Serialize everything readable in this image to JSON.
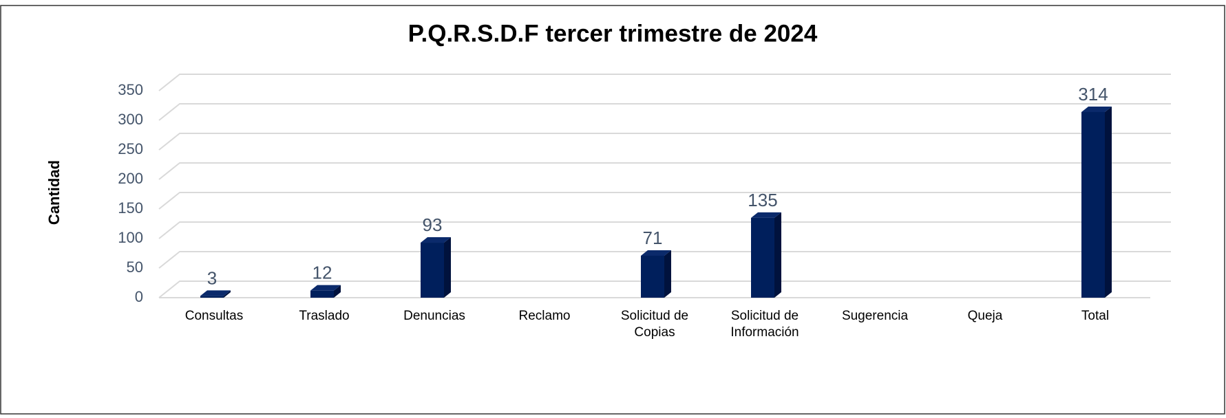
{
  "chart_data": {
    "type": "bar3d",
    "title": "P.Q.R.S.D.F tercer trimestre de 2024",
    "y_label": "Cantidad",
    "categories": [
      "Consultas",
      "Traslado",
      "Denuncias",
      "Reclamo",
      "Solicitud de Copias",
      "Solicitud de Información",
      "Sugerencia",
      "Queja",
      "Total"
    ],
    "values": [
      3,
      12,
      93,
      null,
      71,
      135,
      null,
      null,
      314
    ],
    "color": "#001f5c",
    "ylim": [
      0,
      350
    ],
    "yticks": [
      0,
      50,
      100,
      150,
      200,
      250,
      300,
      350
    ],
    "grid": true
  }
}
